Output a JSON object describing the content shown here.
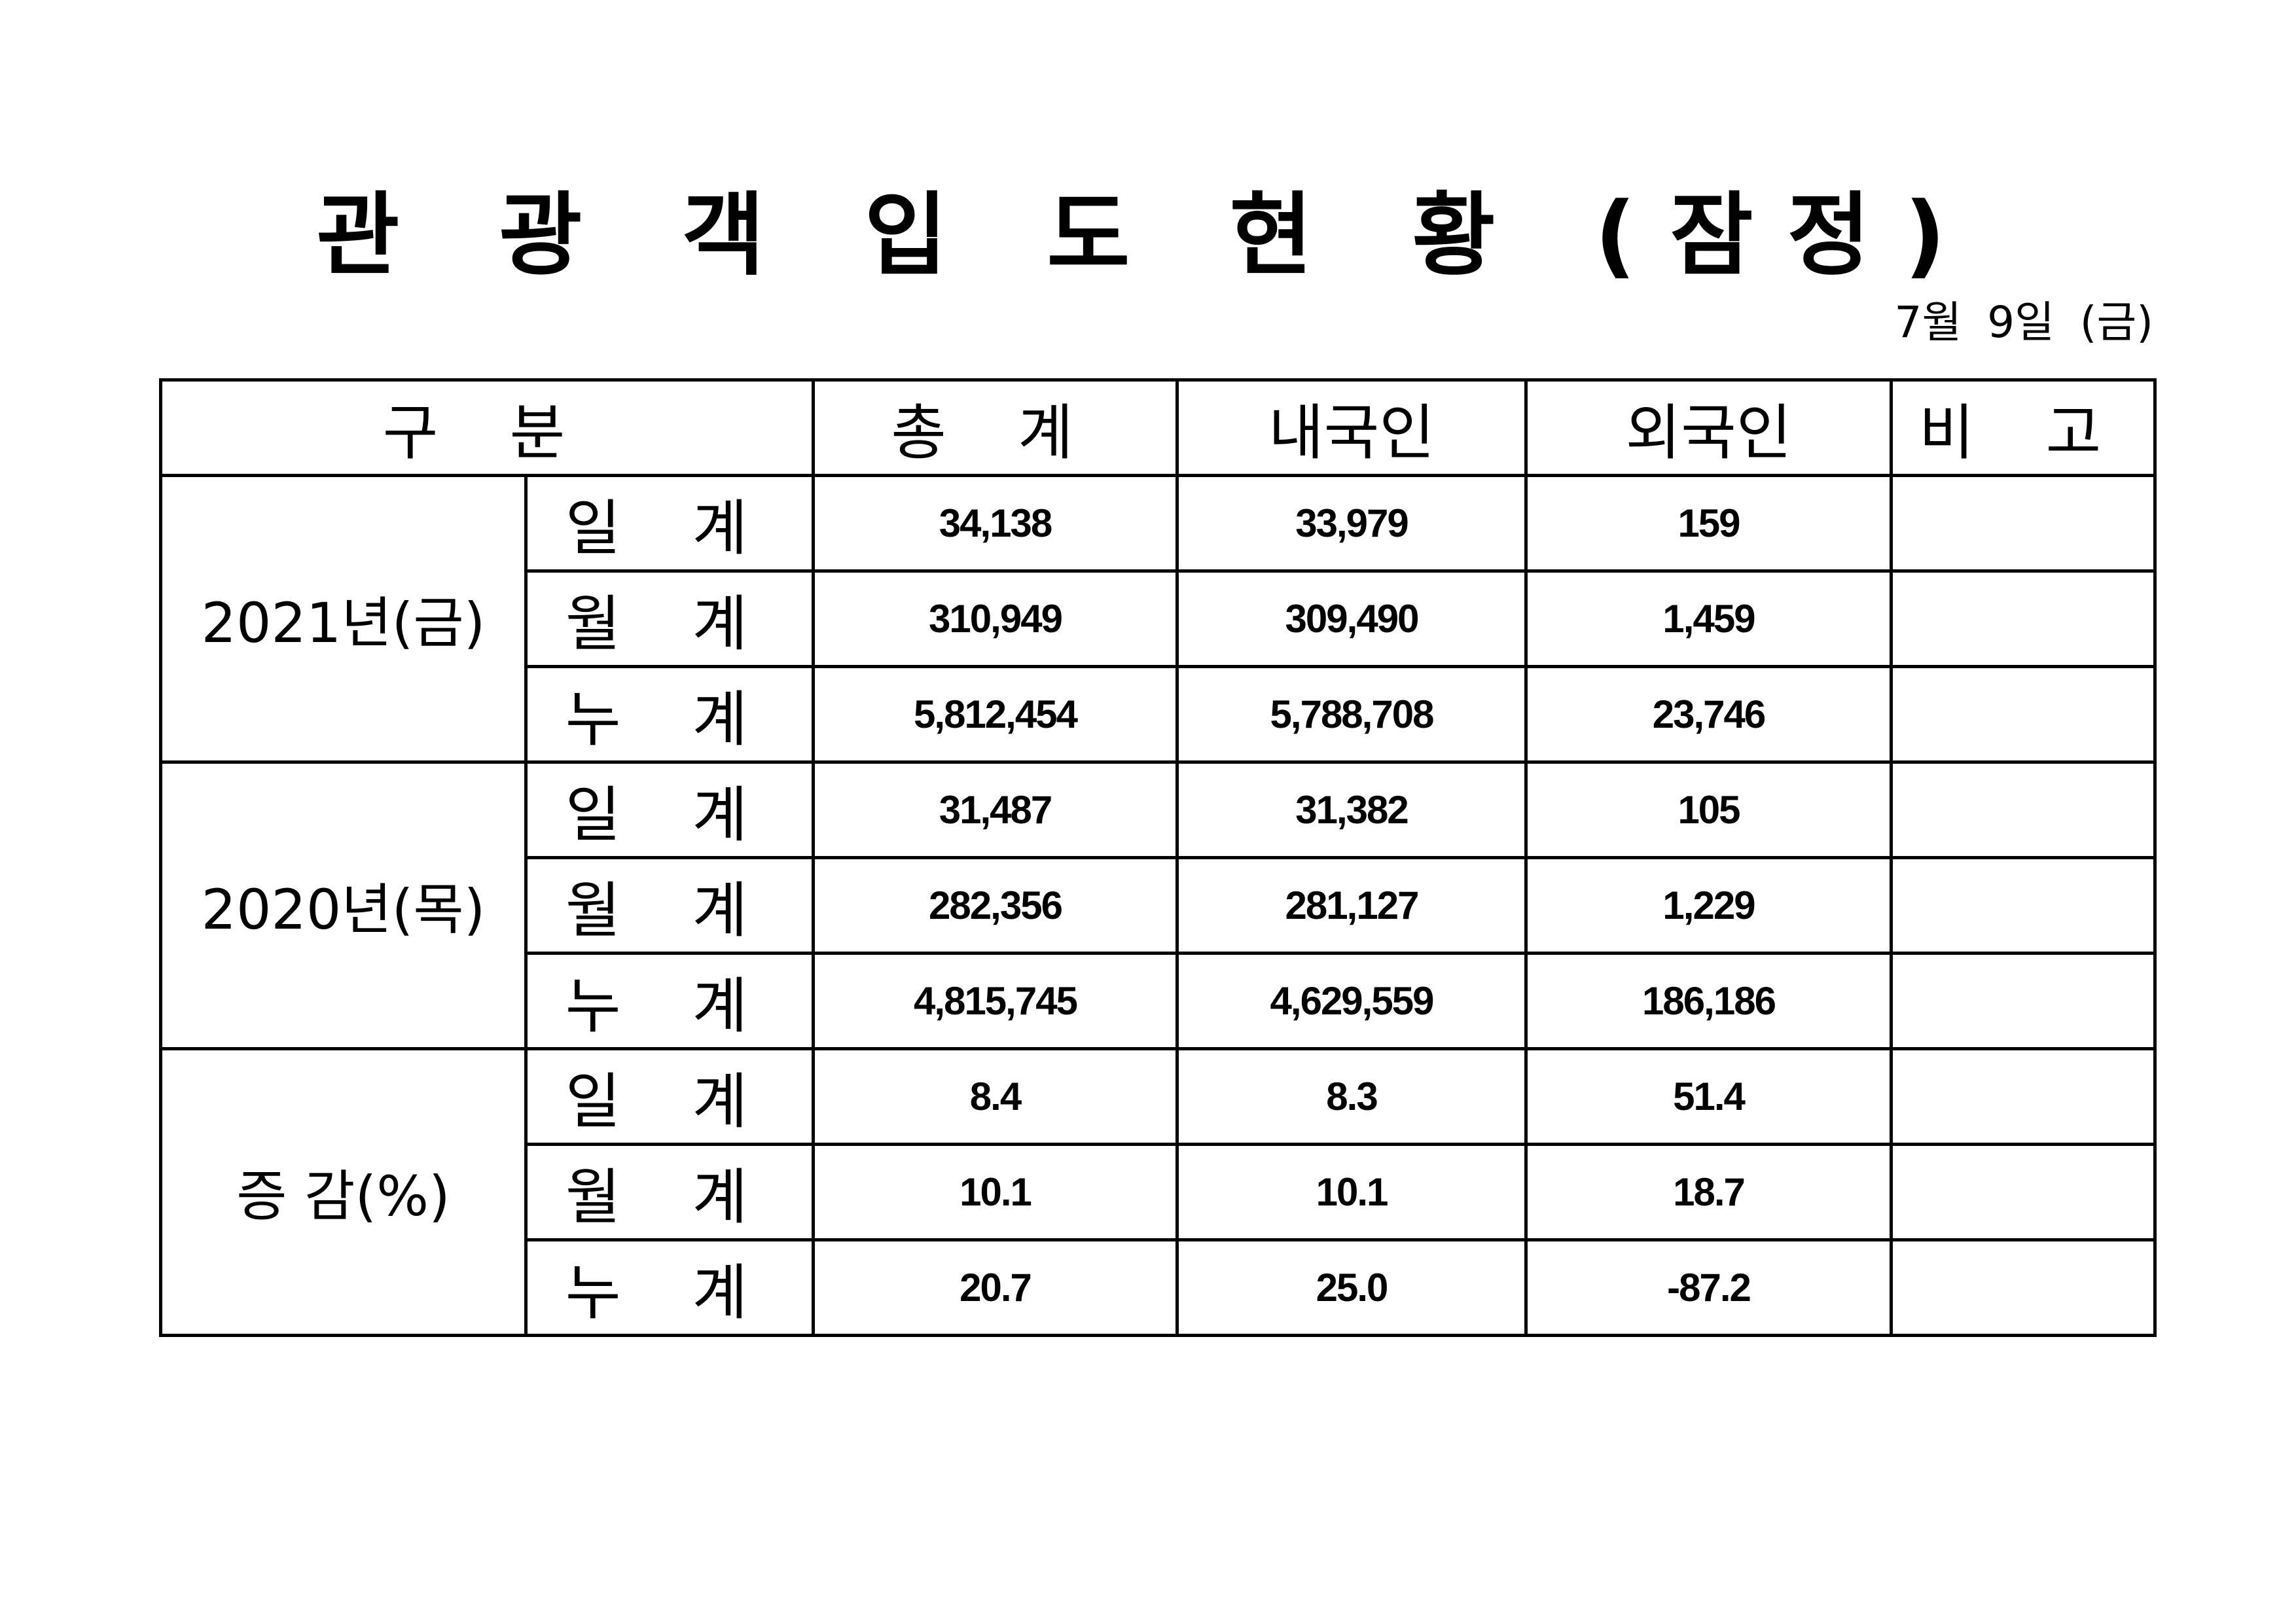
{
  "title": "관 광 객 입 도 현 황 (잠정)",
  "date": "7월 9일 (금)",
  "table": {
    "headers": [
      "구 분",
      "총 계",
      "내국인",
      "외국인",
      "비 고"
    ],
    "groups": [
      {
        "label": "2021년(금)",
        "rows": [
          {
            "sub": "일 계",
            "total": "34,138",
            "domestic": "33,979",
            "foreign": "159",
            "note": ""
          },
          {
            "sub": "월 계",
            "total": "310,949",
            "domestic": "309,490",
            "foreign": "1,459",
            "note": ""
          },
          {
            "sub": "누 계",
            "total": "5,812,454",
            "domestic": "5,788,708",
            "foreign": "23,746",
            "note": ""
          }
        ]
      },
      {
        "label": "2020년(목)",
        "rows": [
          {
            "sub": "일 계",
            "total": "31,487",
            "domestic": "31,382",
            "foreign": "105",
            "note": ""
          },
          {
            "sub": "월 계",
            "total": "282,356",
            "domestic": "281,127",
            "foreign": "1,229",
            "note": ""
          },
          {
            "sub": "누 계",
            "total": "4,815,745",
            "domestic": "4,629,559",
            "foreign": "186,186",
            "note": ""
          }
        ]
      },
      {
        "label": "증 감(%)",
        "rows": [
          {
            "sub": "일 계",
            "total": "8.4",
            "domestic": "8.3",
            "foreign": "51.4",
            "note": ""
          },
          {
            "sub": "월 계",
            "total": "10.1",
            "domestic": "10.1",
            "foreign": "18.7",
            "note": ""
          },
          {
            "sub": "누 계",
            "total": "20.7",
            "domestic": "25.0",
            "foreign": "-87.2",
            "note": ""
          }
        ]
      }
    ]
  }
}
